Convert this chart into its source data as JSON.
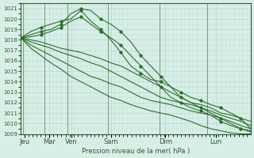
{
  "background_color": "#d8efe8",
  "grid_color": "#b0d4c8",
  "line_color": "#2d6e2d",
  "marker_color": "#2d6e2d",
  "ylim": [
    1009,
    1021.5
  ],
  "yticks": [
    1009,
    1010,
    1011,
    1012,
    1013,
    1014,
    1015,
    1016,
    1017,
    1018,
    1019,
    1020,
    1021
  ],
  "xlabel": "Pression niveau de la mer( hPa )",
  "xtick_labels": [
    "Jeu",
    "Mar",
    "Ven",
    "Sam",
    "Dim",
    "Lun"
  ],
  "xtick_positions": [
    0.08,
    0.65,
    1.17,
    2.08,
    3.33,
    4.5
  ],
  "day_boundaries": [
    0.04,
    0.55,
    1.08,
    2.0,
    3.2,
    4.3
  ],
  "lines": [
    [
      1018.2,
      1018.5,
      1018.8,
      1019.0,
      1019.5,
      1020.5,
      1021.0,
      1020.8,
      1020.0,
      1019.5,
      1018.8,
      1017.8,
      1016.5,
      1015.5,
      1014.5,
      1013.5,
      1012.5,
      1012.0,
      1011.5,
      1011.0,
      1010.5,
      1010.0,
      1009.5,
      1009.2
    ],
    [
      1018.2,
      1018.3,
      1018.5,
      1018.8,
      1019.2,
      1019.8,
      1020.2,
      1019.5,
      1018.8,
      1018.2,
      1017.5,
      1016.5,
      1015.5,
      1014.5,
      1013.5,
      1012.5,
      1012.0,
      1011.5,
      1011.2,
      1010.8,
      1010.2,
      1009.8,
      1009.5,
      1009.3
    ],
    [
      1018.2,
      1018.0,
      1017.8,
      1017.5,
      1017.2,
      1017.0,
      1016.8,
      1016.5,
      1016.2,
      1015.8,
      1015.5,
      1015.0,
      1014.5,
      1014.0,
      1013.5,
      1013.0,
      1012.5,
      1012.0,
      1011.8,
      1011.5,
      1011.0,
      1010.8,
      1010.5,
      1010.2
    ],
    [
      1018.2,
      1017.8,
      1017.5,
      1017.2,
      1016.8,
      1016.5,
      1016.2,
      1015.8,
      1015.5,
      1015.0,
      1014.5,
      1014.0,
      1013.5,
      1013.0,
      1012.5,
      1012.2,
      1012.0,
      1011.8,
      1011.5,
      1011.2,
      1010.8,
      1010.5,
      1010.2,
      1009.8
    ],
    [
      1018.2,
      1017.5,
      1017.0,
      1016.5,
      1016.0,
      1015.5,
      1015.0,
      1014.5,
      1014.2,
      1013.8,
      1013.5,
      1013.0,
      1012.5,
      1012.2,
      1012.0,
      1011.8,
      1011.5,
      1011.2,
      1011.0,
      1010.8,
      1010.5,
      1010.2,
      1009.8,
      1009.5
    ],
    [
      1018.2,
      1017.2,
      1016.5,
      1015.8,
      1015.2,
      1014.5,
      1014.0,
      1013.5,
      1013.0,
      1012.5,
      1012.2,
      1011.8,
      1011.5,
      1011.2,
      1011.0,
      1010.8,
      1010.5,
      1010.2,
      1009.8,
      1009.5,
      1009.3,
      1009.1,
      1009.0,
      1009.0
    ],
    [
      1018.2,
      1018.8,
      1019.2,
      1019.5,
      1019.8,
      1020.0,
      1020.8,
      1019.8,
      1019.0,
      1018.0,
      1016.8,
      1015.5,
      1014.8,
      1014.2,
      1014.0,
      1013.5,
      1013.0,
      1012.5,
      1012.2,
      1011.8,
      1011.5,
      1011.0,
      1010.5,
      1009.5
    ]
  ],
  "n_points": 24,
  "xlim": [
    0,
    5.3
  ]
}
